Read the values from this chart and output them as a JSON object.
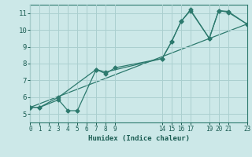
{
  "background_color": "#cce8e8",
  "grid_color": "#aacfcf",
  "line_color": "#2d7a6e",
  "xlabel": "Humidex (Indice chaleur)",
  "xlabel_color": "#1a5c52",
  "xlim": [
    0,
    23
  ],
  "ylim": [
    4.5,
    11.5
  ],
  "xticks": [
    0,
    1,
    2,
    3,
    4,
    5,
    6,
    7,
    8,
    9,
    14,
    15,
    16,
    17,
    19,
    20,
    21,
    23
  ],
  "yticks": [
    5,
    6,
    7,
    8,
    9,
    10,
    11
  ],
  "line1": {
    "x": [
      0,
      1,
      3,
      4,
      5,
      7,
      8,
      14,
      15,
      16,
      17,
      19,
      20,
      21,
      23
    ],
    "y": [
      5.4,
      5.4,
      5.85,
      5.2,
      5.2,
      7.65,
      7.5,
      8.3,
      9.3,
      10.5,
      11.15,
      9.5,
      11.15,
      11.05,
      10.35
    ]
  },
  "line2": {
    "x": [
      0,
      1,
      3,
      7,
      8,
      9,
      14,
      15,
      16,
      17,
      19,
      20,
      21,
      23
    ],
    "y": [
      5.4,
      5.4,
      6.0,
      7.65,
      7.4,
      7.75,
      8.3,
      9.3,
      10.5,
      11.2,
      9.5,
      11.15,
      11.1,
      10.35
    ]
  },
  "line3": {
    "x": [
      0,
      23
    ],
    "y": [
      5.4,
      10.35
    ]
  },
  "figsize": [
    3.2,
    2.0
  ],
  "dpi": 100
}
